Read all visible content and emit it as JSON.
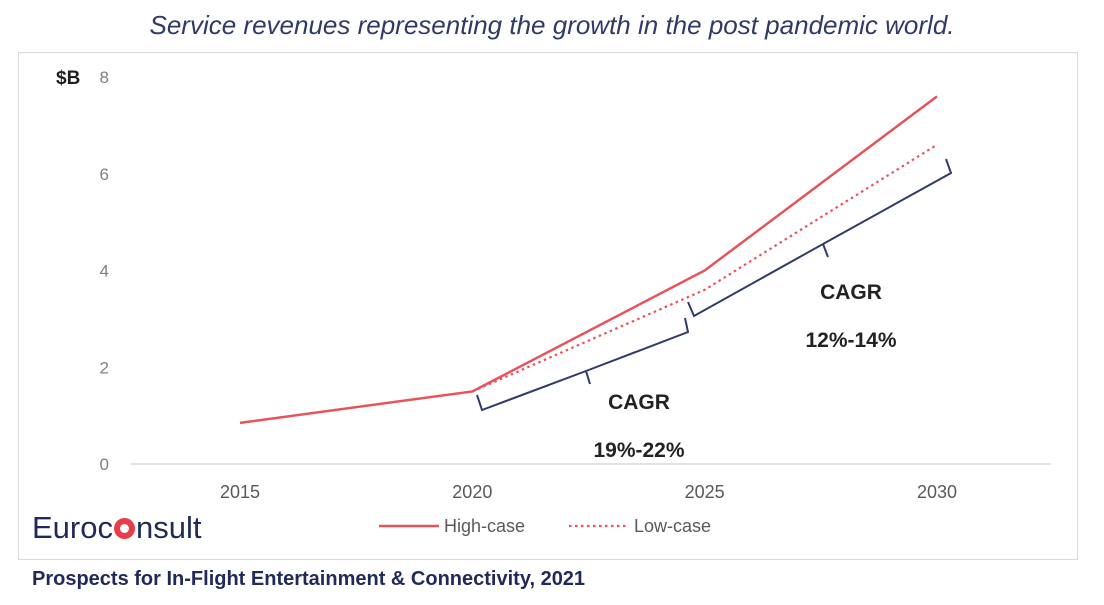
{
  "title": "Service revenues representing the growth in the post pandemic world.",
  "source": "Prospects for In-Flight Entertainment & Connectivity, 2021",
  "logo": {
    "part1": "Euroc",
    "part2": "nsult",
    "dot_color": "#e63d4a"
  },
  "chart_data": {
    "type": "line",
    "ylabel": "$B",
    "ylim": [
      0,
      8
    ],
    "yticks": [
      "0",
      "2",
      "4",
      "6",
      "8"
    ],
    "xticks": [
      "2015",
      "2020",
      "2025",
      "2030"
    ],
    "series": [
      {
        "name": "High-case",
        "style": "solid",
        "color": "#e8525a",
        "x": [
          2015,
          2020,
          2025,
          2030
        ],
        "y": [
          0.85,
          1.5,
          4.0,
          7.6
        ]
      },
      {
        "name": "Low-case",
        "style": "dotted",
        "color": "#e8525a",
        "x": [
          2020,
          2025,
          2030
        ],
        "y": [
          1.5,
          3.6,
          6.6
        ]
      }
    ],
    "legend_position": "bottom",
    "annotations": [
      {
        "label": "CAGR",
        "value": "19%-22%"
      },
      {
        "label": "CAGR",
        "value": "12%-14%"
      }
    ],
    "colors": {
      "bracket": "#2f3b6a",
      "axis_text": "#7f7f7f",
      "baseline": "#d9d9d9"
    }
  }
}
